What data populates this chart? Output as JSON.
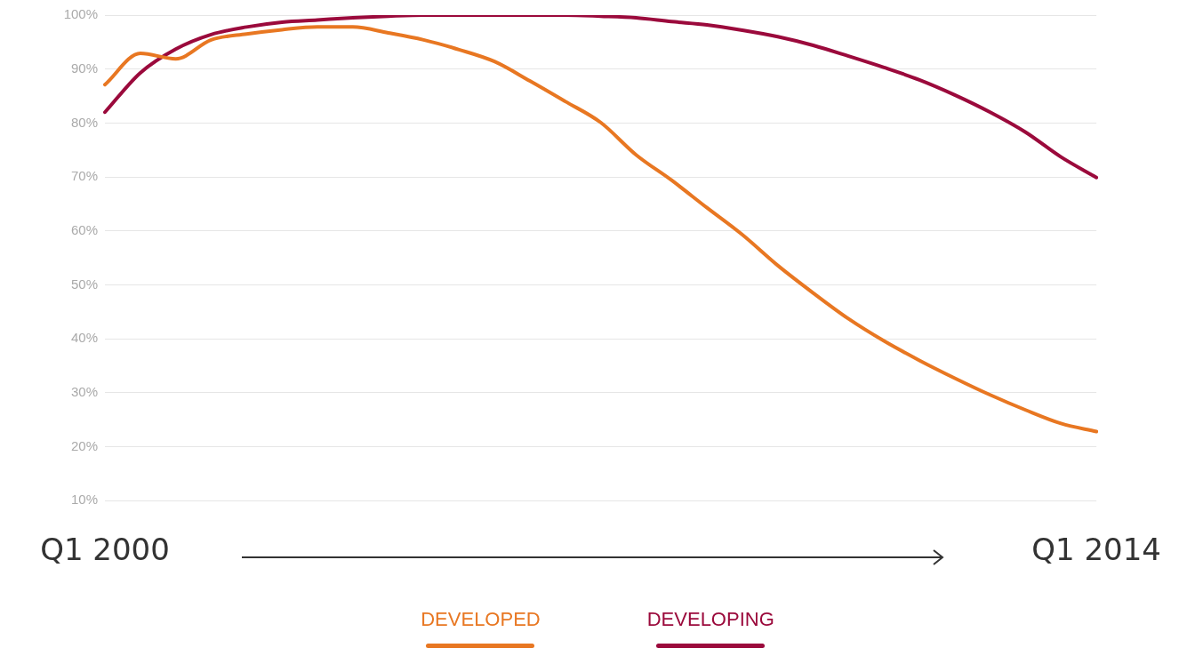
{
  "chart_data": {
    "type": "line",
    "categories": [
      "Q1 2000",
      null,
      null,
      null,
      null,
      null,
      null,
      null,
      null,
      null,
      null,
      null,
      null,
      null,
      null,
      null,
      null,
      null,
      null,
      null,
      null,
      null,
      null,
      null,
      null,
      null,
      null,
      null,
      "Q1 2014"
    ],
    "series": [
      {
        "name": "DEVELOPED",
        "color": "#e87722",
        "values": [
          87.1,
          92.9,
          91.9,
          95.4,
          96.5,
          97.3,
          97.8,
          97.8,
          96.7,
          95.4,
          93.6,
          91.4,
          87.8,
          84.0,
          80.1,
          74.1,
          69.4,
          64.3,
          59.3,
          53.6,
          48.5,
          43.7,
          39.6,
          36.0,
          32.7,
          29.6,
          26.8,
          24.3,
          22.8
        ]
      },
      {
        "name": "DEVELOPING",
        "color": "#9b0a3c",
        "values": [
          82.0,
          89.3,
          93.7,
          96.4,
          97.8,
          98.7,
          99.1,
          99.5,
          99.8,
          100,
          100,
          100,
          100,
          100,
          99.8,
          99.5,
          98.8,
          98.2,
          97.2,
          96.0,
          94.4,
          92.4,
          90.3,
          88.0,
          85.2,
          82.0,
          78.3,
          73.7,
          69.9
        ]
      }
    ],
    "ylim": [
      10,
      100
    ],
    "yticks": [
      {
        "value": 10,
        "label": "10%"
      },
      {
        "value": 20,
        "label": "20%"
      },
      {
        "value": 30,
        "label": "30%"
      },
      {
        "value": 40,
        "label": "40%"
      },
      {
        "value": 50,
        "label": "50%"
      },
      {
        "value": 60,
        "label": "60%"
      },
      {
        "value": 70,
        "label": "70%"
      },
      {
        "value": 80,
        "label": "80%"
      },
      {
        "value": 90,
        "label": "90%"
      },
      {
        "value": 100,
        "label": "100%"
      }
    ],
    "grid": "y",
    "legend": "bottom",
    "marker": "none",
    "line_style": "solid"
  }
}
